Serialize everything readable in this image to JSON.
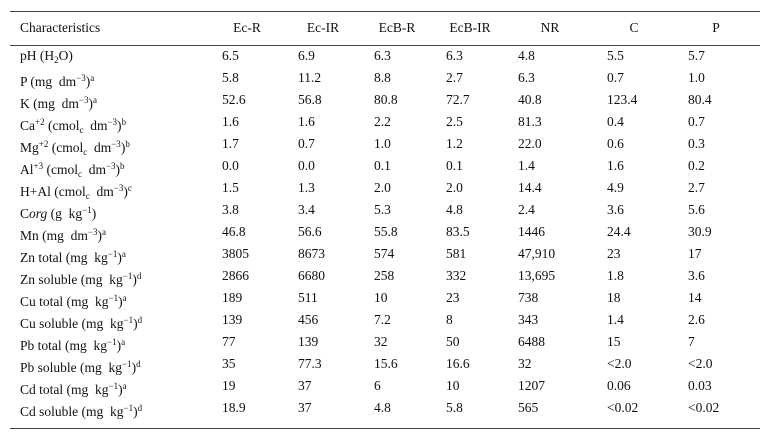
{
  "table": {
    "header": [
      "Characteristics",
      "Ec-R",
      "Ec-IR",
      "EcB-R",
      "EcB-IR",
      "NR",
      "C",
      "P"
    ],
    "rows": [
      {
        "label": [
          {
            "text": "pH (H"
          },
          {
            "text": "2",
            "style": "sub"
          },
          {
            "text": "O)"
          }
        ],
        "cells": [
          "6.5",
          "6.9",
          "6.3",
          "6.3",
          "4.8",
          "5.5",
          "5.7"
        ]
      },
      {
        "label": [
          {
            "text": "P (mg  dm"
          },
          {
            "text": "−3",
            "style": "sup"
          },
          {
            "text": ")"
          },
          {
            "text": "a",
            "style": "sup"
          }
        ],
        "cells": [
          "5.8",
          "11.2",
          "8.8",
          "2.7",
          "6.3",
          "0.7",
          "1.0"
        ]
      },
      {
        "label": [
          {
            "text": "K (mg  dm"
          },
          {
            "text": "−3",
            "style": "sup"
          },
          {
            "text": ")"
          },
          {
            "text": "a",
            "style": "sup"
          }
        ],
        "cells": [
          "52.6",
          "56.8",
          "80.8",
          "72.7",
          "40.8",
          "123.4",
          "80.4"
        ]
      },
      {
        "label": [
          {
            "text": "Ca"
          },
          {
            "text": "+2",
            "style": "sup"
          },
          {
            "text": " (cmol"
          },
          {
            "text": "c",
            "style": "sub"
          },
          {
            "text": "  dm"
          },
          {
            "text": "−3",
            "style": "sup"
          },
          {
            "text": ")"
          },
          {
            "text": "b",
            "style": "sup"
          }
        ],
        "cells": [
          "1.6",
          "1.6",
          "2.2",
          "2.5",
          "81.3",
          "0.4",
          "0.7"
        ]
      },
      {
        "label": [
          {
            "text": "Mg"
          },
          {
            "text": "+2",
            "style": "sup"
          },
          {
            "text": " (cmol"
          },
          {
            "text": "c",
            "style": "sub"
          },
          {
            "text": "  dm"
          },
          {
            "text": "−3",
            "style": "sup"
          },
          {
            "text": ")"
          },
          {
            "text": "b",
            "style": "sup"
          }
        ],
        "cells": [
          "1.7",
          "0.7",
          "1.0",
          "1.2",
          "22.0",
          "0.6",
          "0.3"
        ]
      },
      {
        "label": [
          {
            "text": "Al"
          },
          {
            "text": "+3",
            "style": "sup"
          },
          {
            "text": " (cmol"
          },
          {
            "text": "c",
            "style": "sub"
          },
          {
            "text": "  dm"
          },
          {
            "text": "−3",
            "style": "sup"
          },
          {
            "text": ")"
          },
          {
            "text": "b",
            "style": "sup"
          }
        ],
        "cells": [
          "0.0",
          "0.0",
          "0.1",
          "0.1",
          "1.4",
          "1.6",
          "0.2"
        ]
      },
      {
        "label": [
          {
            "text": "H+Al (cmol"
          },
          {
            "text": "c",
            "style": "sub"
          },
          {
            "text": "  dm"
          },
          {
            "text": "−3",
            "style": "sup"
          },
          {
            "text": ")"
          },
          {
            "text": "c",
            "style": "sup"
          }
        ],
        "cells": [
          "1.5",
          "1.3",
          "2.0",
          "2.0",
          "14.4",
          "4.9",
          "2.7"
        ]
      },
      {
        "label": [
          {
            "text": "C"
          },
          {
            "text": "org",
            "style": "italic"
          },
          {
            "text": " (g  kg"
          },
          {
            "text": "−1",
            "style": "sup"
          },
          {
            "text": ")"
          }
        ],
        "cells": [
          "3.8",
          "3.4",
          "5.3",
          "4.8",
          "2.4",
          "3.6",
          "5.6"
        ]
      },
      {
        "label": [
          {
            "text": "Mn (mg  dm"
          },
          {
            "text": "−3",
            "style": "sup"
          },
          {
            "text": ")"
          },
          {
            "text": "a",
            "style": "sup"
          }
        ],
        "cells": [
          "46.8",
          "56.6",
          "55.8",
          "83.5",
          "1446",
          "24.4",
          "30.9"
        ]
      },
      {
        "label": [
          {
            "text": "Zn total (mg  kg"
          },
          {
            "text": "−1",
            "style": "sup"
          },
          {
            "text": ")"
          },
          {
            "text": "a",
            "style": "sup"
          }
        ],
        "cells": [
          "3805",
          "8673",
          "574",
          "581",
          "47,910",
          "23",
          "17"
        ]
      },
      {
        "label": [
          {
            "text": "Zn soluble (mg  kg"
          },
          {
            "text": "−1",
            "style": "sup"
          },
          {
            "text": ")"
          },
          {
            "text": "d",
            "style": "sup"
          }
        ],
        "cells": [
          "2866",
          "6680",
          "258",
          "332",
          "13,695",
          "1.8",
          "3.6"
        ]
      },
      {
        "label": [
          {
            "text": "Cu total (mg  kg"
          },
          {
            "text": "−1",
            "style": "sup"
          },
          {
            "text": ")"
          },
          {
            "text": "a",
            "style": "sup"
          }
        ],
        "cells": [
          "189",
          "511",
          "10",
          "23",
          "738",
          "18",
          "14"
        ]
      },
      {
        "label": [
          {
            "text": "Cu soluble (mg  kg"
          },
          {
            "text": "−1",
            "style": "sup"
          },
          {
            "text": ")"
          },
          {
            "text": "d",
            "style": "sup"
          }
        ],
        "cells": [
          "139",
          "456",
          "7.2",
          "8",
          "343",
          "1.4",
          "2.6"
        ]
      },
      {
        "label": [
          {
            "text": "Pb total (mg  kg"
          },
          {
            "text": "−1",
            "style": "sup"
          },
          {
            "text": ")"
          },
          {
            "text": "a",
            "style": "sup"
          }
        ],
        "cells": [
          "77",
          "139",
          "32",
          "50",
          "6488",
          "15",
          "7"
        ]
      },
      {
        "label": [
          {
            "text": "Pb soluble (mg  kg"
          },
          {
            "text": "−1",
            "style": "sup"
          },
          {
            "text": ")"
          },
          {
            "text": "d",
            "style": "sup"
          }
        ],
        "cells": [
          "35",
          "77.3",
          "15.6",
          "16.6",
          "32",
          "<2.0",
          "<2.0"
        ]
      },
      {
        "label": [
          {
            "text": "Cd total (mg  kg"
          },
          {
            "text": "−1",
            "style": "sup"
          },
          {
            "text": ")"
          },
          {
            "text": "a",
            "style": "sup"
          }
        ],
        "cells": [
          "19",
          "37",
          "6",
          "10",
          "1207",
          "0.06",
          "0.03"
        ]
      },
      {
        "label": [
          {
            "text": "Cd soluble (mg  kg"
          },
          {
            "text": "−1",
            "style": "sup"
          },
          {
            "text": ")"
          },
          {
            "text": "d",
            "style": "sup"
          }
        ],
        "cells": [
          "18.9",
          "37",
          "4.8",
          "5.8",
          "565",
          "<0.02",
          "<0.02"
        ]
      }
    ]
  }
}
